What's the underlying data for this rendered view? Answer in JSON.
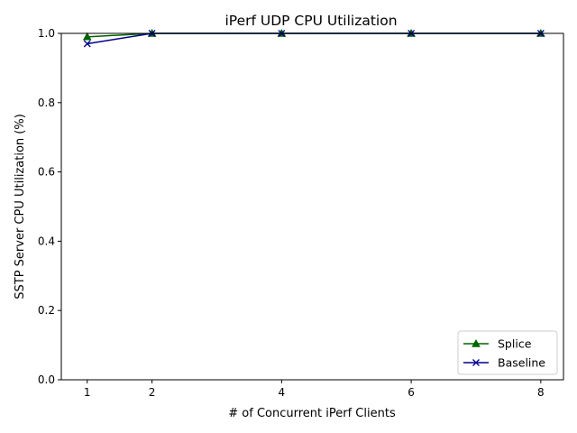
{
  "chart_data": {
    "type": "line",
    "title": "iPerf UDP CPU Utilization",
    "xlabel": "# of Concurrent iPerf Clients",
    "ylabel": "SSTP Server CPU Utilization (%)",
    "xlim": [
      0.6,
      8.35
    ],
    "ylim": [
      0.0,
      1.0
    ],
    "xticks": [
      1,
      2,
      4,
      6,
      8
    ],
    "yticks": [
      0.0,
      0.2,
      0.4,
      0.6,
      0.8,
      1.0
    ],
    "grid": false,
    "legend_position": "lower-right",
    "series": [
      {
        "name": "Splice",
        "color": "#006400",
        "marker": "triangle",
        "x": [
          1,
          2,
          4,
          6,
          8
        ],
        "y": [
          0.99,
          1.0,
          1.0,
          1.0,
          1.0
        ]
      },
      {
        "name": "Baseline",
        "color": "#00008b",
        "marker": "x",
        "x": [
          1,
          2,
          4,
          6,
          8
        ],
        "y": [
          0.97,
          1.0,
          1.0,
          1.0,
          1.0
        ]
      }
    ]
  }
}
